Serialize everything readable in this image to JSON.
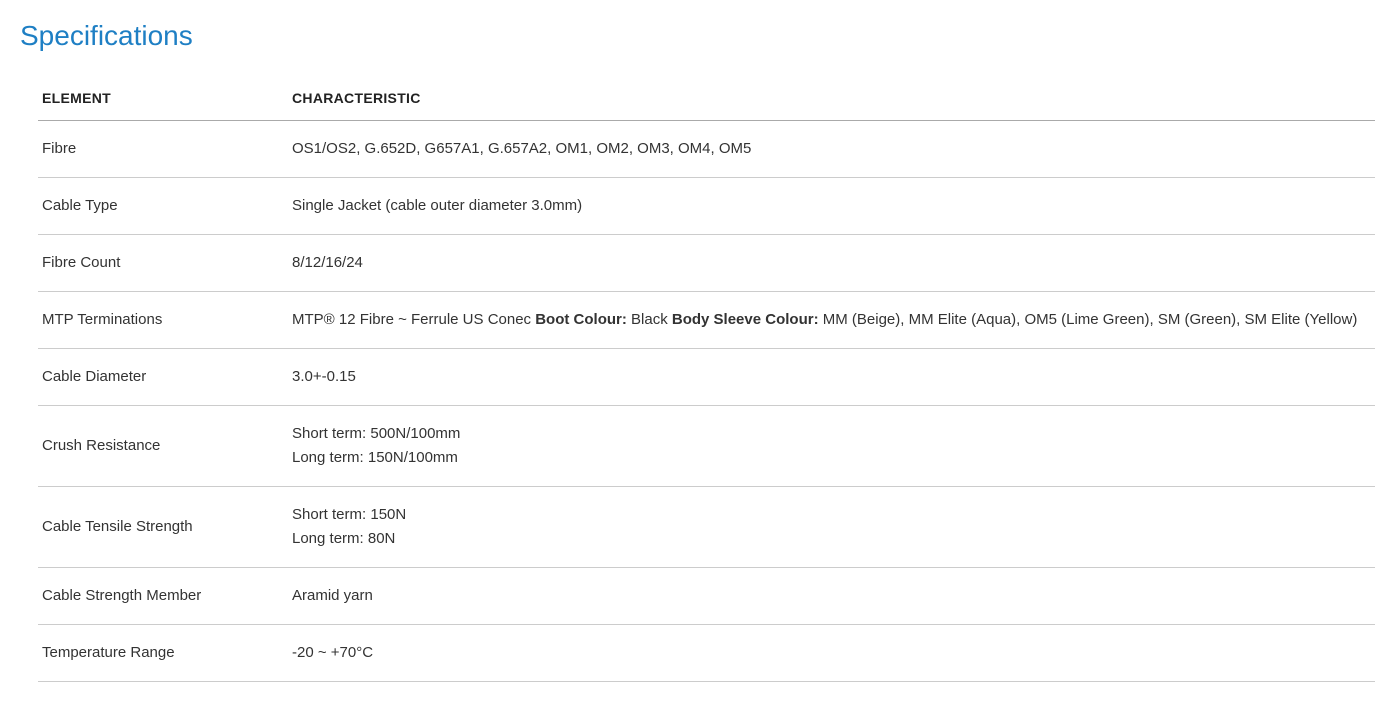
{
  "title": "Specifications",
  "table": {
    "headers": {
      "element": "ELEMENT",
      "characteristic": "CHARACTERISTIC"
    },
    "rows": [
      {
        "element": "Fibre",
        "characteristic": "OS1/OS2, G.652D, G657A1, G.657A2, OM1, OM2, OM3, OM4, OM5"
      },
      {
        "element": "Cable Type",
        "characteristic": "Single Jacket (cable outer diameter 3.0mm)"
      },
      {
        "element": "Fibre Count",
        "characteristic": "8/12/16/24"
      },
      {
        "element": "MTP Terminations",
        "characteristic_parts": {
          "prefix": "MTP® 12 Fibre ~ Ferrule US Conec ",
          "label1": "Boot Colour:",
          "value1": " Black ",
          "label2": "Body Sleeve Colour:",
          "value2": " MM (Beige), MM Elite (Aqua), OM5 (Lime Green), SM (Green), SM Elite (Yellow)"
        }
      },
      {
        "element": "Cable Diameter",
        "characteristic": "3.0+-0.15"
      },
      {
        "element": "Crush Resistance",
        "characteristic_lines": {
          "line1": "Short term: 500N/100mm",
          "line2": "Long term: 150N/100mm"
        }
      },
      {
        "element": "Cable Tensile Strength",
        "characteristic_lines": {
          "line1": "Short term: 150N",
          "line2": "Long term: 80N"
        }
      },
      {
        "element": "Cable Strength Member",
        "characteristic": "Aramid yarn"
      },
      {
        "element": "Temperature Range",
        "characteristic": "-20 ~ +70°C"
      }
    ]
  },
  "styling": {
    "title_color": "#1e7fc4",
    "title_fontsize": 28,
    "title_fontweight": 300,
    "header_fontsize": 14,
    "header_color": "#222222",
    "cell_fontsize": 15,
    "cell_color": "#333333",
    "header_border_color": "#aaaaaa",
    "row_border_color": "#cccccc",
    "background_color": "#ffffff",
    "col_element_width": 250,
    "row_padding_vertical": 16
  }
}
